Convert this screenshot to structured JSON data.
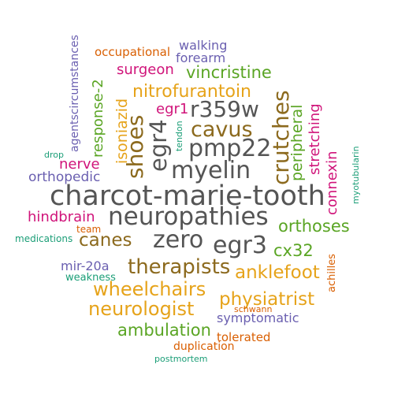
{
  "palette": {
    "gray": "#555555",
    "brown": "#8c6a1e",
    "gold": "#e6a31a",
    "green": "#5aa524",
    "magenta": "#d0147a",
    "purple": "#6a5fb0",
    "teal": "#1b9e77",
    "orange": "#d95f02"
  },
  "words": [
    {
      "key": "charcot_marie_tooth",
      "text": "charcot-marie-tooth",
      "color": "gray",
      "weight": 1.0
    },
    {
      "key": "neuropathies",
      "text": "neuropathies",
      "color": "gray",
      "weight": 0.9
    },
    {
      "key": "myelin",
      "text": "myelin",
      "color": "gray",
      "weight": 0.85
    },
    {
      "key": "pmp22",
      "text": "pmp22",
      "color": "gray",
      "weight": 0.85
    },
    {
      "key": "zero",
      "text": "zero",
      "color": "gray",
      "weight": 0.8
    },
    {
      "key": "egr3",
      "text": "egr3",
      "color": "gray",
      "weight": 0.8
    },
    {
      "key": "egr4",
      "text": "egr4",
      "color": "gray",
      "weight": 0.75
    },
    {
      "key": "r359w",
      "text": "r359w",
      "color": "gray",
      "weight": 0.7
    },
    {
      "key": "cavus",
      "text": "cavus",
      "color": "brown",
      "weight": 0.7
    },
    {
      "key": "crutches",
      "text": "crutches",
      "color": "brown",
      "weight": 0.7
    },
    {
      "key": "shoes",
      "text": "shoes",
      "color": "brown",
      "weight": 0.7
    },
    {
      "key": "therapists",
      "text": "therapists",
      "color": "brown",
      "weight": 0.7
    },
    {
      "key": "canes",
      "text": "canes",
      "color": "brown",
      "weight": 0.6
    },
    {
      "key": "wheelchairs",
      "text": "wheelchairs",
      "color": "gold",
      "weight": 0.65
    },
    {
      "key": "neurologist",
      "text": "neurologist",
      "color": "gold",
      "weight": 0.6
    },
    {
      "key": "anklefoot",
      "text": "anklefoot",
      "color": "gold",
      "weight": 0.6
    },
    {
      "key": "physiatrist",
      "text": "physiatrist",
      "color": "gold",
      "weight": 0.6
    },
    {
      "key": "nitrofurantoin",
      "text": "nitrofurantoin",
      "color": "gold",
      "weight": 0.55
    },
    {
      "key": "isoniazid",
      "text": "isoniazid",
      "color": "gold",
      "weight": 0.5
    },
    {
      "key": "orthoses",
      "text": "orthoses",
      "color": "green",
      "weight": 0.5
    },
    {
      "key": "cx32",
      "text": "cx32",
      "color": "green",
      "weight": 0.5
    },
    {
      "key": "vincristine",
      "text": "vincristine",
      "color": "green",
      "weight": 0.5
    },
    {
      "key": "peripheral",
      "text": "peripheral",
      "color": "green",
      "weight": 0.5
    },
    {
      "key": "ambulation",
      "text": "ambulation",
      "color": "green",
      "weight": 0.45
    },
    {
      "key": "response_2",
      "text": "response-2",
      "color": "green",
      "weight": 0.5
    },
    {
      "key": "stretching",
      "text": "stretching",
      "color": "magenta",
      "weight": 0.45
    },
    {
      "key": "connexin",
      "text": "connexin",
      "color": "magenta",
      "weight": 0.45
    },
    {
      "key": "surgeon",
      "text": "surgeon",
      "color": "magenta",
      "weight": 0.45
    },
    {
      "key": "egr1",
      "text": "egr1",
      "color": "magenta",
      "weight": 0.45
    },
    {
      "key": "nerve",
      "text": "nerve",
      "color": "magenta",
      "weight": 0.45
    },
    {
      "key": "hindbrain",
      "text": "hindbrain",
      "color": "magenta",
      "weight": 0.45
    },
    {
      "key": "orthopedic",
      "text": "orthopedic",
      "color": "purple",
      "weight": 0.4
    },
    {
      "key": "mir_20a",
      "text": "mir-20a",
      "color": "purple",
      "weight": 0.4
    },
    {
      "key": "symptomatic",
      "text": "symptomatic",
      "color": "purple",
      "weight": 0.4
    },
    {
      "key": "walking",
      "text": "walking",
      "color": "purple",
      "weight": 0.4
    },
    {
      "key": "forearm",
      "text": "forearm",
      "color": "purple",
      "weight": 0.4
    },
    {
      "key": "agentscircumstances",
      "text": "agentscircumstances",
      "color": "purple",
      "weight": 0.35
    },
    {
      "key": "occupational",
      "text": "occupational",
      "color": "orange",
      "weight": 0.4
    },
    {
      "key": "tolerated",
      "text": "tolerated",
      "color": "orange",
      "weight": 0.4
    },
    {
      "key": "duplication",
      "text": "duplication",
      "color": "orange",
      "weight": 0.35
    },
    {
      "key": "achilles",
      "text": "achilles",
      "color": "orange",
      "weight": 0.35
    },
    {
      "key": "team",
      "text": "team",
      "color": "orange",
      "weight": 0.3
    },
    {
      "key": "schwann",
      "text": "schwann",
      "color": "orange",
      "weight": 0.3
    },
    {
      "key": "weakness",
      "text": "weakness",
      "color": "teal",
      "weight": 0.3
    },
    {
      "key": "tendon",
      "text": "tendon",
      "color": "teal",
      "weight": 0.25
    },
    {
      "key": "drop",
      "text": "drop",
      "color": "teal",
      "weight": 0.25
    },
    {
      "key": "medications",
      "text": "medications",
      "color": "teal",
      "weight": 0.25
    },
    {
      "key": "myotubularin",
      "text": "myotubularin",
      "color": "teal",
      "weight": 0.25
    },
    {
      "key": "postmortem",
      "text": "postmortem",
      "color": "teal",
      "weight": 0.25
    }
  ]
}
